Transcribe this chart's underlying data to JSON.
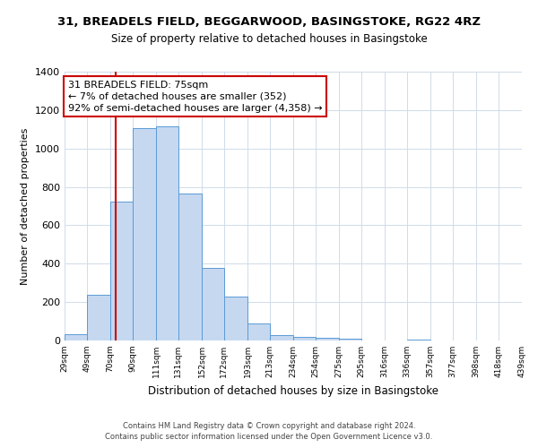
{
  "title": "31, BREADELS FIELD, BEGGARWOOD, BASINGSTOKE, RG22 4RZ",
  "subtitle": "Size of property relative to detached houses in Basingstoke",
  "xlabel": "Distribution of detached houses by size in Basingstoke",
  "ylabel": "Number of detached properties",
  "bar_left_edges": [
    29,
    49,
    70,
    90,
    111,
    131,
    152,
    172,
    193,
    213,
    234,
    254,
    275,
    295,
    316,
    336,
    357,
    377,
    398,
    418
  ],
  "bar_heights": [
    35,
    240,
    725,
    1105,
    1115,
    765,
    380,
    230,
    90,
    30,
    20,
    15,
    10,
    0,
    0,
    5,
    0,
    0,
    0,
    0
  ],
  "bar_widths": [
    20,
    21,
    20,
    21,
    20,
    21,
    20,
    21,
    20,
    21,
    20,
    21,
    20,
    21,
    20,
    21,
    20,
    21,
    20,
    21
  ],
  "bar_color": "#c5d8f0",
  "bar_edge_color": "#5b9bd5",
  "vline_x": 75,
  "vline_color": "#cc0000",
  "annotation_title": "31 BREADELS FIELD: 75sqm",
  "annotation_line1": "← 7% of detached houses are smaller (352)",
  "annotation_line2": "92% of semi-detached houses are larger (4,358) →",
  "annotation_box_color": "#ffffff",
  "annotation_box_edge": "#cc0000",
  "tick_labels": [
    "29sqm",
    "49sqm",
    "70sqm",
    "90sqm",
    "111sqm",
    "131sqm",
    "152sqm",
    "172sqm",
    "193sqm",
    "213sqm",
    "234sqm",
    "254sqm",
    "275sqm",
    "295sqm",
    "316sqm",
    "336sqm",
    "357sqm",
    "377sqm",
    "398sqm",
    "418sqm",
    "439sqm"
  ],
  "ylim": [
    0,
    1400
  ],
  "yticks": [
    0,
    200,
    400,
    600,
    800,
    1000,
    1200,
    1400
  ],
  "footnote1": "Contains HM Land Registry data © Crown copyright and database right 2024.",
  "footnote2": "Contains public sector information licensed under the Open Government Licence v3.0.",
  "bg_color": "#ffffff",
  "grid_color": "#d0dce8"
}
